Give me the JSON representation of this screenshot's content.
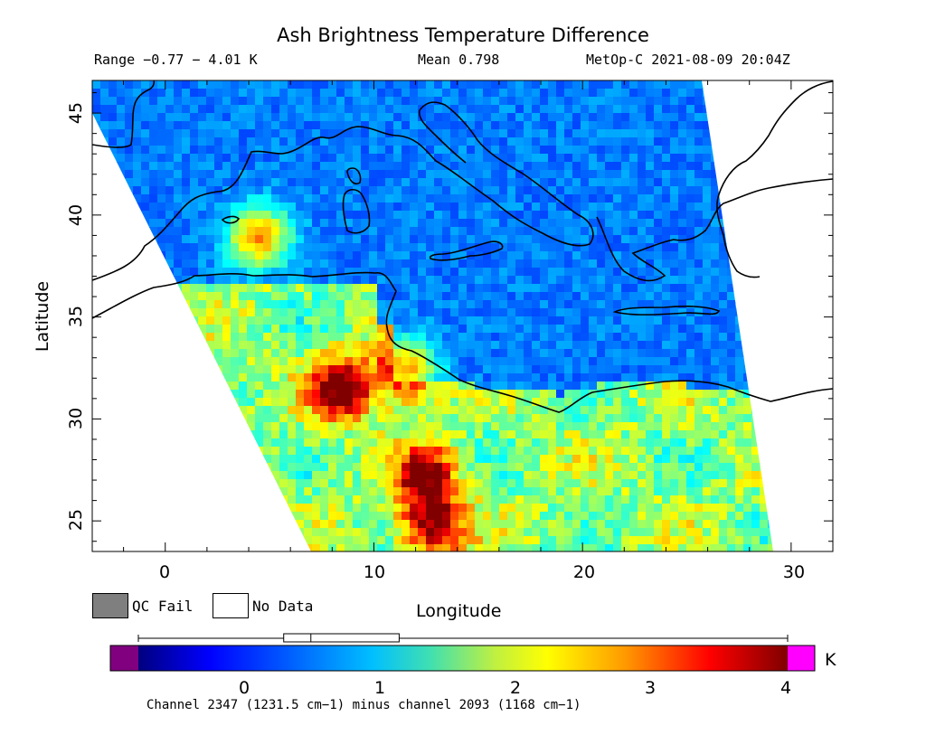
{
  "title": "Ash Brightness Temperature Difference",
  "header": {
    "range": "Range −0.77 − 4.01 K",
    "mean": "Mean 0.798",
    "satellite_time": "MetOp-C 2021-08-09 20:04Z"
  },
  "axes": {
    "xlabel": "Longitude",
    "ylabel": "Latitude",
    "xticks": [
      "0",
      "10",
      "20",
      "30"
    ],
    "yticks": [
      "45",
      "40",
      "35",
      "30",
      "25"
    ],
    "xrange": [
      -3.5,
      32
    ],
    "yrange": [
      23.5,
      46.6
    ]
  },
  "legend": {
    "qc_fail": "QC Fail",
    "no_data": "No Data",
    "qc_fail_color": "#7f7f7f",
    "no_data_color": "#ffffff"
  },
  "colorbar": {
    "ticks": [
      "0",
      "1",
      "2",
      "3",
      "4"
    ],
    "unit": "K",
    "range": [
      -0.77,
      4.01
    ],
    "under_color": "#800080",
    "over_color": "#ff00ff",
    "boxplot": {
      "min": -0.77,
      "q1": 0.3,
      "median": 0.5,
      "q3": 1.15,
      "max": 4.01
    }
  },
  "footnote": "Channel 2347 (1231.5 cm−1) minus channel 2093 (1168 cm−1)",
  "hotspots": [
    {
      "lon": 4.5,
      "lat": 38.9,
      "value": 3.4
    },
    {
      "lon": 8.5,
      "lat": 31.5,
      "value": 3.6
    },
    {
      "lon": 12.5,
      "lat": 27.2,
      "value": 3.3
    },
    {
      "lon": 12.8,
      "lat": 24.8,
      "value": 3.5
    },
    {
      "lon": 11.5,
      "lat": 32.4,
      "value": 3.2
    }
  ]
}
